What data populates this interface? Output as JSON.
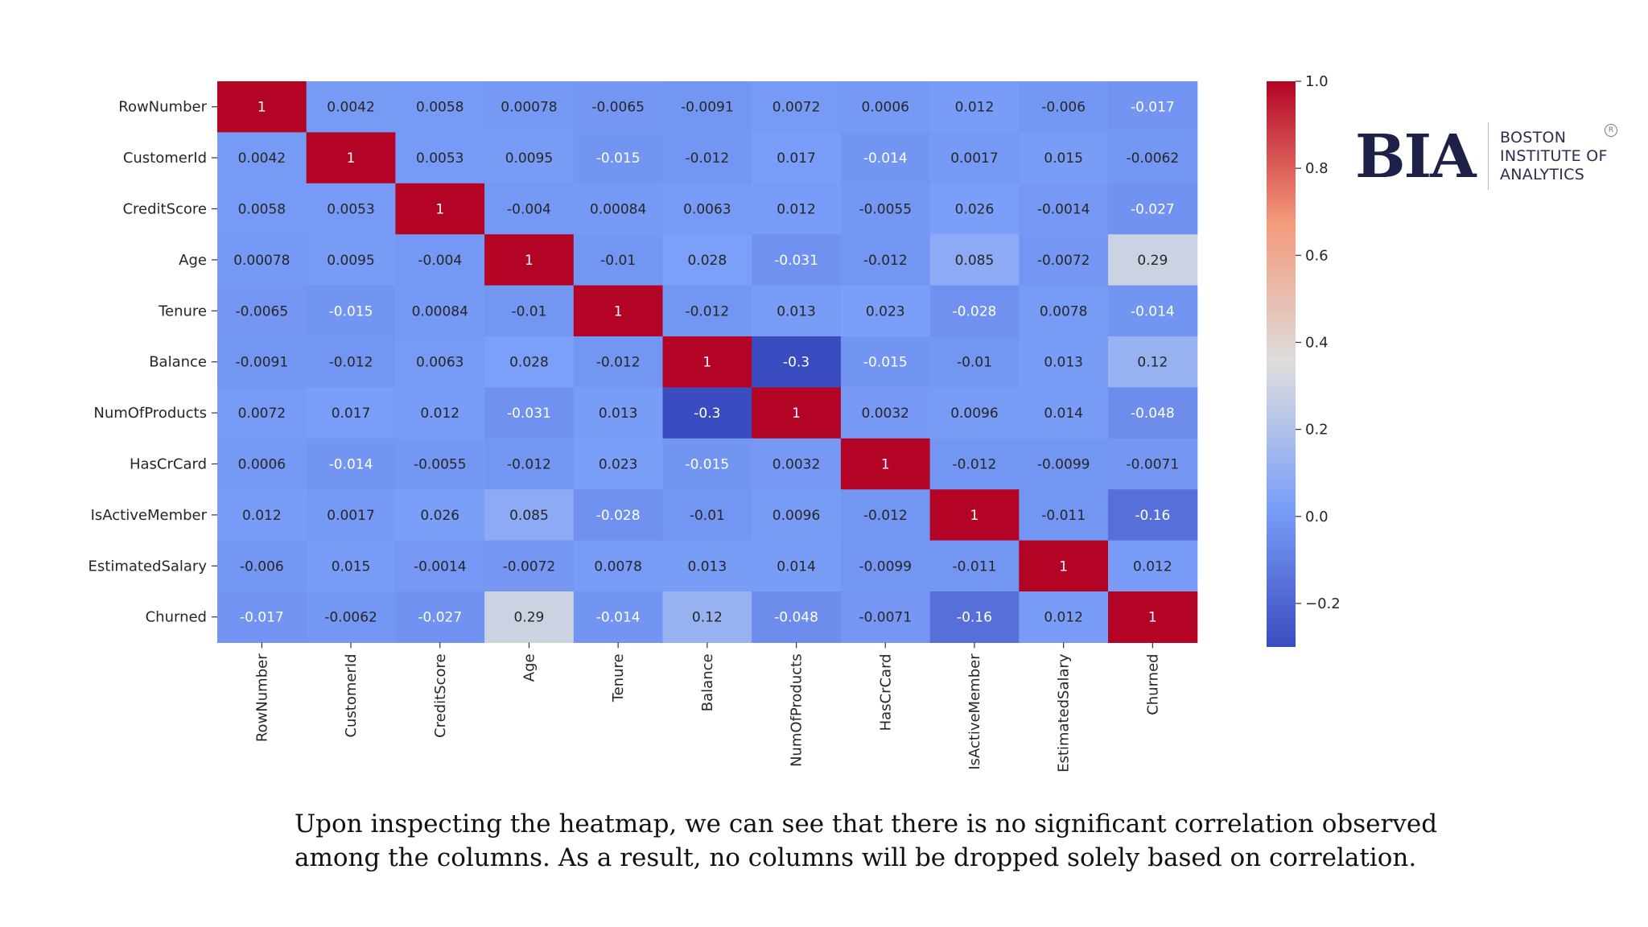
{
  "chart_data": {
    "type": "heatmap",
    "labels": [
      "RowNumber",
      "CustomerId",
      "CreditScore",
      "Age",
      "Tenure",
      "Balance",
      "NumOfProducts",
      "HasCrCard",
      "IsActiveMember",
      "EstimatedSalary",
      "Churned"
    ],
    "matrix_labels": [
      [
        "1",
        "0.0042",
        "0.0058",
        "0.00078",
        "-0.0065",
        "-0.0091",
        "0.0072",
        "0.0006",
        "0.012",
        "-0.006",
        "-0.017"
      ],
      [
        "0.0042",
        "1",
        "0.0053",
        "0.0095",
        "-0.015",
        "-0.012",
        "0.017",
        "-0.014",
        "0.0017",
        "0.015",
        "-0.0062"
      ],
      [
        "0.0058",
        "0.0053",
        "1",
        "-0.004",
        "0.00084",
        "0.0063",
        "0.012",
        "-0.0055",
        "0.026",
        "-0.0014",
        "-0.027"
      ],
      [
        "0.00078",
        "0.0095",
        "-0.004",
        "1",
        "-0.01",
        "0.028",
        "-0.031",
        "-0.012",
        "0.085",
        "-0.0072",
        "0.29"
      ],
      [
        "-0.0065",
        "-0.015",
        "0.00084",
        "-0.01",
        "1",
        "-0.012",
        "0.013",
        "0.023",
        "-0.028",
        "0.0078",
        "-0.014"
      ],
      [
        "-0.0091",
        "-0.012",
        "0.0063",
        "0.028",
        "-0.012",
        "1",
        "-0.3",
        "-0.015",
        "-0.01",
        "0.013",
        "0.12"
      ],
      [
        "0.0072",
        "0.017",
        "0.012",
        "-0.031",
        "0.013",
        "-0.3",
        "1",
        "0.0032",
        "0.0096",
        "0.014",
        "-0.048"
      ],
      [
        "0.0006",
        "-0.014",
        "-0.0055",
        "-0.012",
        "0.023",
        "-0.015",
        "0.0032",
        "1",
        "-0.012",
        "-0.0099",
        "-0.0071"
      ],
      [
        "0.012",
        "0.0017",
        "0.026",
        "0.085",
        "-0.028",
        "-0.01",
        "0.0096",
        "-0.012",
        "1",
        "-0.011",
        "-0.16"
      ],
      [
        "-0.006",
        "0.015",
        "-0.0014",
        "-0.0072",
        "0.0078",
        "0.013",
        "0.014",
        "-0.0099",
        "-0.011",
        "1",
        "0.012"
      ],
      [
        "-0.017",
        "-0.0062",
        "-0.027",
        "0.29",
        "-0.014",
        "0.12",
        "-0.048",
        "-0.0071",
        "-0.16",
        "0.012",
        "1"
      ]
    ],
    "colorbar": {
      "min": -0.3,
      "max": 1.0,
      "ticks": [
        1.0,
        0.8,
        0.6,
        0.4,
        0.2,
        0.0,
        -0.2
      ],
      "tick_labels": [
        "1.0",
        "0.8",
        "0.6",
        "0.4",
        "0.2",
        "0.0",
        "−0.2"
      ]
    },
    "colormap": "coolwarm",
    "colors": {
      "low": "#3b4cc0",
      "mid": "#dddddd",
      "high": "#b40426"
    }
  },
  "logo": {
    "mark": "BIA",
    "lines": [
      "BOSTON",
      "INSTITUTE OF",
      "ANALYTICS"
    ],
    "reg": "R"
  },
  "caption": {
    "line1": "Upon inspecting the heatmap, we can see that there is no significant correlation observed",
    "line2": "among the columns. As a result, no columns will be dropped solely based on correlation."
  }
}
